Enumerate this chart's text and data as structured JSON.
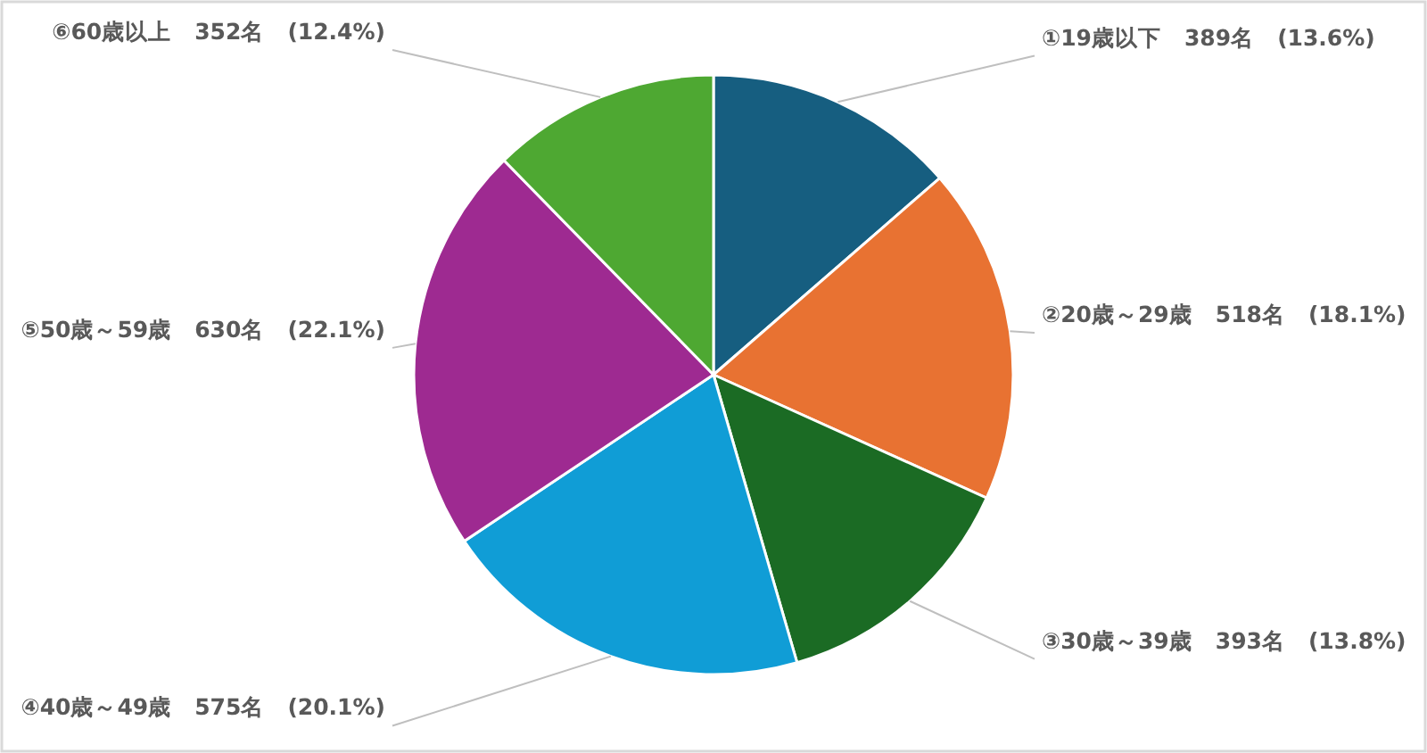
{
  "chart_data": {
    "type": "pie",
    "categories": [
      "①19歳以下",
      "②20歳～29歳",
      "③30歳～39歳",
      "④40歳～49歳",
      "⑤50歳～59歳",
      "⑥60歳以上"
    ],
    "values": [
      389,
      518,
      393,
      575,
      630,
      352
    ],
    "value_labels": [
      "389名　(13.6%)",
      "518名　(18.1%)",
      "393名　(13.8%)",
      "575名　(20.1%)",
      "630名　(22.1%)",
      "352名　(12.4%)"
    ],
    "colors": [
      "#165e80",
      "#e87232",
      "#1b6b24",
      "#109dd6",
      "#9e2a91",
      "#4ea832"
    ]
  }
}
